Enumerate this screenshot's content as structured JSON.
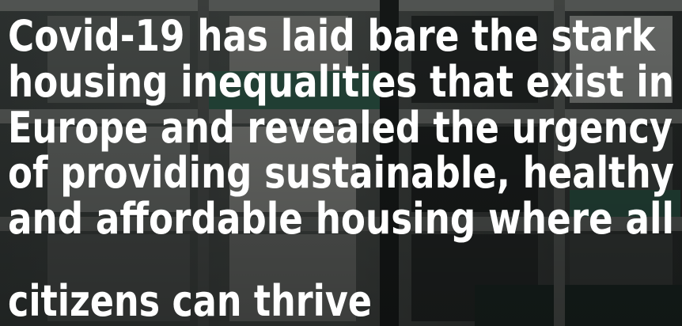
{
  "quote": {
    "lines": [
      "Covid-19 has laid bare the stark",
      "housing inequalities that exist in",
      "Europe and revealed the urgency",
      "of providing sustainable, healthy",
      "and affordable housing where all",
      "citizens can thrive"
    ]
  }
}
